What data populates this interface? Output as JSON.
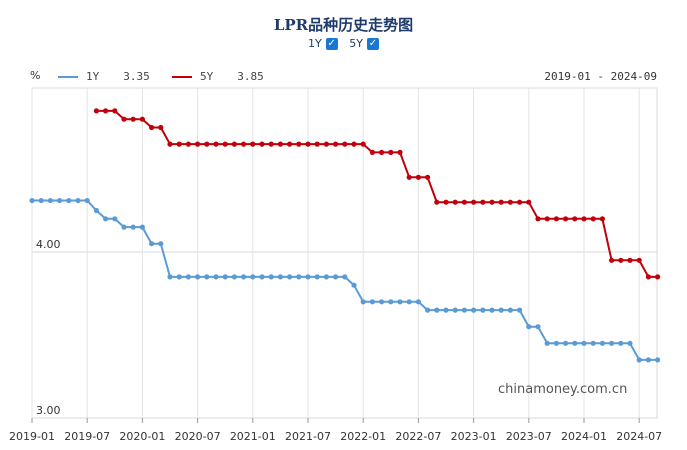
{
  "page": {
    "title": "LPR品种历史走势图",
    "toggles": [
      {
        "label": "1Y",
        "checked": true
      },
      {
        "label": "5Y",
        "checked": true
      }
    ],
    "unit": "%",
    "legend": [
      {
        "name": "1Y",
        "value": "3.35",
        "color": "#5b9bd5"
      },
      {
        "name": "5Y",
        "value": "3.85",
        "color": "#c0000b"
      }
    ],
    "range": "2019-01 - 2024-09",
    "watermark": "chinamoney.com.cn"
  },
  "chart_data": {
    "type": "line",
    "title": "LPR品种历史走势图",
    "ylabel": "%",
    "y_ticks": [
      "4.00",
      "3.00"
    ],
    "ylim": [
      3.0,
      5.0
    ],
    "x_ticks": [
      "2019-01",
      "2019-07",
      "2020-01",
      "2020-07",
      "2021-01",
      "2021-07",
      "2022-01",
      "2022-07",
      "2023-01",
      "2023-07",
      "2024-01",
      "2024-07"
    ],
    "x_range": [
      "2019-01",
      "2024-09"
    ],
    "grid": true,
    "series": [
      {
        "name": "1Y",
        "color": "#5b9bd5",
        "x": [
          "2019-01",
          "2019-02",
          "2019-03",
          "2019-04",
          "2019-05",
          "2019-06",
          "2019-07",
          "2019-08",
          "2019-09",
          "2019-10",
          "2019-11",
          "2019-12",
          "2020-01",
          "2020-02",
          "2020-03",
          "2020-04",
          "2020-05",
          "2020-06",
          "2020-07",
          "2020-08",
          "2020-09",
          "2020-10",
          "2020-11",
          "2020-12",
          "2021-01",
          "2021-02",
          "2021-03",
          "2021-04",
          "2021-05",
          "2021-06",
          "2021-07",
          "2021-08",
          "2021-09",
          "2021-10",
          "2021-11",
          "2021-12",
          "2022-01",
          "2022-02",
          "2022-03",
          "2022-04",
          "2022-05",
          "2022-06",
          "2022-07",
          "2022-08",
          "2022-09",
          "2022-10",
          "2022-11",
          "2022-12",
          "2023-01",
          "2023-02",
          "2023-03",
          "2023-04",
          "2023-05",
          "2023-06",
          "2023-07",
          "2023-08",
          "2023-09",
          "2023-10",
          "2023-11",
          "2023-12",
          "2024-01",
          "2024-02",
          "2024-03",
          "2024-04",
          "2024-05",
          "2024-06",
          "2024-07",
          "2024-08",
          "2024-09"
        ],
        "values": [
          4.31,
          4.31,
          4.31,
          4.31,
          4.31,
          4.31,
          4.31,
          4.25,
          4.2,
          4.2,
          4.15,
          4.15,
          4.15,
          4.05,
          4.05,
          3.85,
          3.85,
          3.85,
          3.85,
          3.85,
          3.85,
          3.85,
          3.85,
          3.85,
          3.85,
          3.85,
          3.85,
          3.85,
          3.85,
          3.85,
          3.85,
          3.85,
          3.85,
          3.85,
          3.85,
          3.8,
          3.7,
          3.7,
          3.7,
          3.7,
          3.7,
          3.7,
          3.7,
          3.65,
          3.65,
          3.65,
          3.65,
          3.65,
          3.65,
          3.65,
          3.65,
          3.65,
          3.65,
          3.65,
          3.55,
          3.55,
          3.45,
          3.45,
          3.45,
          3.45,
          3.45,
          3.45,
          3.45,
          3.45,
          3.45,
          3.45,
          3.35,
          3.35,
          3.35
        ]
      },
      {
        "name": "5Y",
        "color": "#c0000b",
        "x": [
          "2019-08",
          "2019-09",
          "2019-10",
          "2019-11",
          "2019-12",
          "2020-01",
          "2020-02",
          "2020-03",
          "2020-04",
          "2020-05",
          "2020-06",
          "2020-07",
          "2020-08",
          "2020-09",
          "2020-10",
          "2020-11",
          "2020-12",
          "2021-01",
          "2021-02",
          "2021-03",
          "2021-04",
          "2021-05",
          "2021-06",
          "2021-07",
          "2021-08",
          "2021-09",
          "2021-10",
          "2021-11",
          "2021-12",
          "2022-01",
          "2022-02",
          "2022-03",
          "2022-04",
          "2022-05",
          "2022-06",
          "2022-07",
          "2022-08",
          "2022-09",
          "2022-10",
          "2022-11",
          "2022-12",
          "2023-01",
          "2023-02",
          "2023-03",
          "2023-04",
          "2023-05",
          "2023-06",
          "2023-07",
          "2023-08",
          "2023-09",
          "2023-10",
          "2023-11",
          "2023-12",
          "2024-01",
          "2024-02",
          "2024-03",
          "2024-04",
          "2024-05",
          "2024-06",
          "2024-07",
          "2024-08",
          "2024-09"
        ],
        "values": [
          4.85,
          4.85,
          4.85,
          4.8,
          4.8,
          4.8,
          4.75,
          4.75,
          4.65,
          4.65,
          4.65,
          4.65,
          4.65,
          4.65,
          4.65,
          4.65,
          4.65,
          4.65,
          4.65,
          4.65,
          4.65,
          4.65,
          4.65,
          4.65,
          4.65,
          4.65,
          4.65,
          4.65,
          4.65,
          4.65,
          4.6,
          4.6,
          4.6,
          4.6,
          4.45,
          4.45,
          4.45,
          4.3,
          4.3,
          4.3,
          4.3,
          4.3,
          4.3,
          4.3,
          4.3,
          4.3,
          4.3,
          4.3,
          4.2,
          4.2,
          4.2,
          4.2,
          4.2,
          4.2,
          4.2,
          4.2,
          3.95,
          3.95,
          3.95,
          3.95,
          3.85,
          3.85
        ]
      }
    ]
  }
}
